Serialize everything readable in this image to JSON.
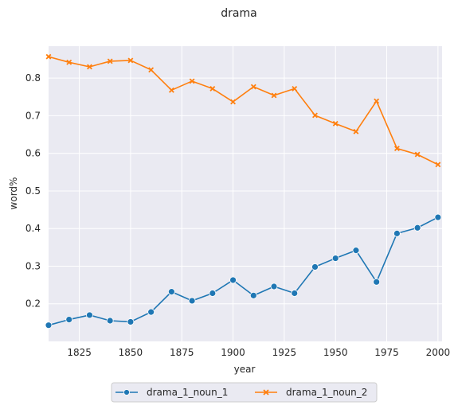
{
  "chart_data": {
    "type": "line",
    "title": "drama",
    "xlabel": "year",
    "ylabel": "word%",
    "x": [
      1810,
      1820,
      1830,
      1840,
      1850,
      1860,
      1870,
      1880,
      1890,
      1900,
      1910,
      1920,
      1930,
      1940,
      1950,
      1960,
      1970,
      1980,
      1990,
      2000
    ],
    "xlim": [
      1810,
      2002
    ],
    "ylim": [
      0.1,
      0.885
    ],
    "xticks": [
      1825,
      1850,
      1875,
      1900,
      1925,
      1950,
      1975,
      2000
    ],
    "yticks": [
      0.2,
      0.3,
      0.4,
      0.5,
      0.6,
      0.7,
      0.8
    ],
    "grid": true,
    "legend_position": "bottom-center",
    "series": [
      {
        "name": "drama_1_noun_1",
        "color": "#1f77b4",
        "marker": "circle",
        "values": [
          0.143,
          0.158,
          0.17,
          0.155,
          0.152,
          0.178,
          0.232,
          0.208,
          0.228,
          0.263,
          0.222,
          0.246,
          0.228,
          0.298,
          0.321,
          0.342,
          0.258,
          0.387,
          0.402,
          0.43
        ]
      },
      {
        "name": "drama_1_noun_2",
        "color": "#ff7f0e",
        "marker": "x",
        "values": [
          0.857,
          0.842,
          0.83,
          0.845,
          0.847,
          0.822,
          0.768,
          0.792,
          0.772,
          0.737,
          0.777,
          0.754,
          0.772,
          0.701,
          0.679,
          0.658,
          0.739,
          0.613,
          0.597,
          0.57
        ]
      }
    ]
  }
}
